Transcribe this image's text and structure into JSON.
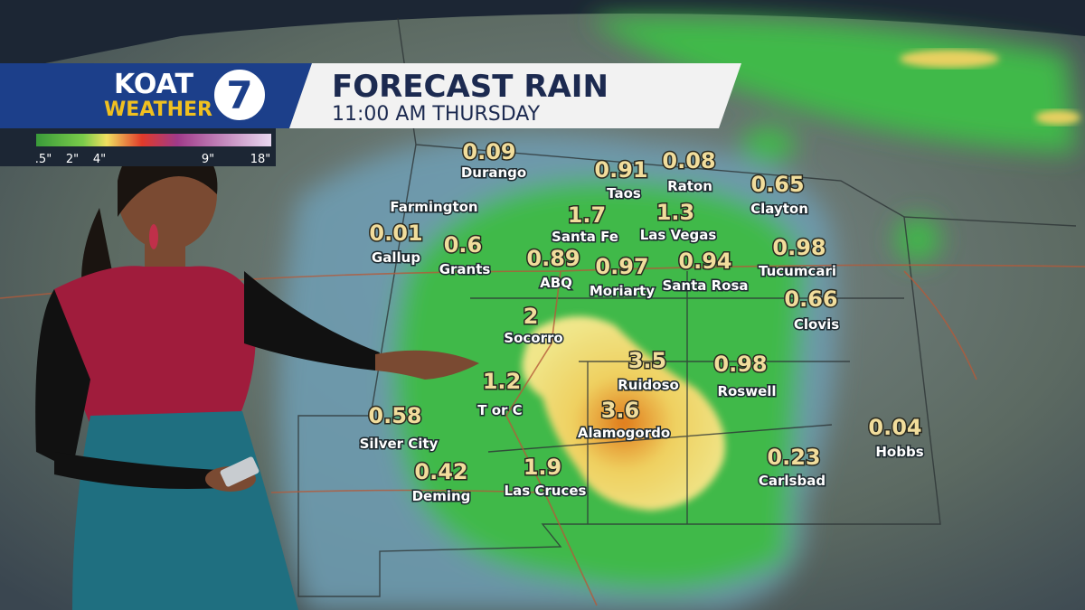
{
  "header": {
    "logo": {
      "station": "KOAT",
      "segment": "WEATHER",
      "channel": "7"
    },
    "title": "FORECAST RAIN",
    "subtitle": "11:00 AM THURSDAY"
  },
  "legend": {
    "labels": [
      ".5\"",
      "2\"",
      "4\"",
      "9\"",
      "18\""
    ]
  },
  "cities": [
    {
      "name": "Durango",
      "value": 0.09
    },
    {
      "name": "Farmington"
    },
    {
      "name": "Taos",
      "value": 0.91
    },
    {
      "name": "Raton",
      "value": 0.08
    },
    {
      "name": "Clayton",
      "value": 0.65
    },
    {
      "name": "Gallup",
      "value": 0.01
    },
    {
      "name": "Grants",
      "value": 0.6
    },
    {
      "name": "Santa Fe",
      "value": 1.7
    },
    {
      "name": "Las Vegas",
      "value": 1.3
    },
    {
      "name": "ABQ",
      "value": 0.89
    },
    {
      "name": "Moriarty",
      "value": 0.97
    },
    {
      "name": "Santa Rosa",
      "value": 0.94
    },
    {
      "name": "Tucumcari",
      "value": 0.98
    },
    {
      "name": "Clovis",
      "value": 0.66
    },
    {
      "name": "Socorro",
      "value": 2
    },
    {
      "name": "Ruidoso",
      "value": 3.5
    },
    {
      "name": "Roswell",
      "value": 0.98
    },
    {
      "name": "T or C",
      "value": 1.2
    },
    {
      "name": "Alamogordo",
      "value": 3.6
    },
    {
      "name": "Silver City",
      "value": 0.58
    },
    {
      "name": "Hobbs",
      "value": 0.04
    },
    {
      "name": "Carlsbad",
      "value": 0.23
    },
    {
      "name": "Deming",
      "value": 0.42
    },
    {
      "name": "Las Cruces",
      "value": 1.9
    }
  ]
}
